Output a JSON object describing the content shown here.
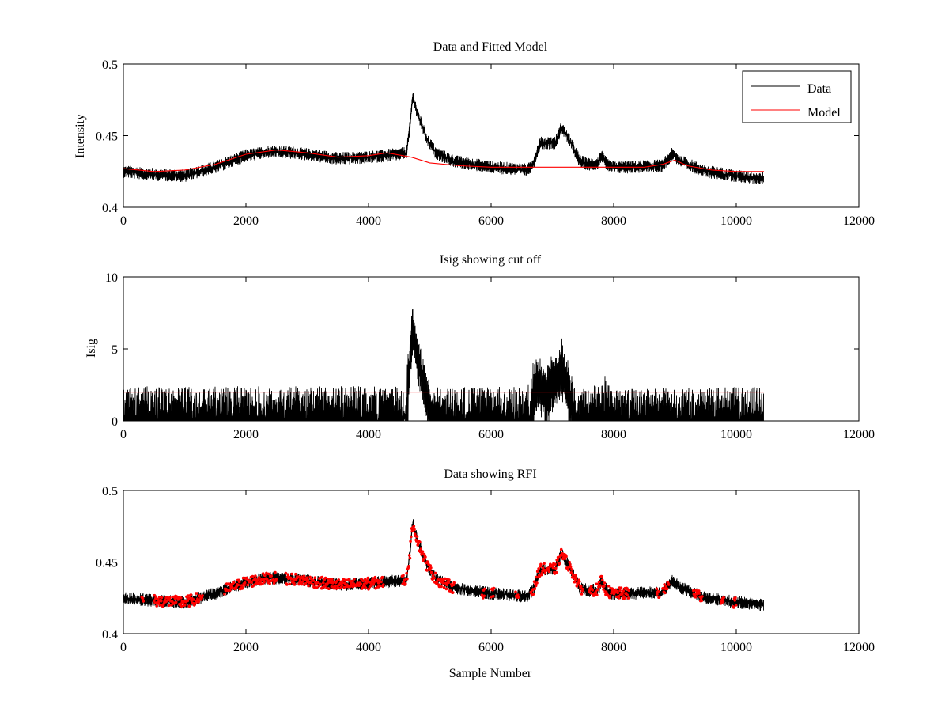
{
  "colors": {
    "data": "#000000",
    "model": "#ff0000",
    "background": "#ffffff"
  },
  "chart_data": [
    {
      "type": "line",
      "title": "Data and Fitted Model",
      "xlabel": "",
      "ylabel": "Intensity",
      "xlim": [
        0,
        12000
      ],
      "ylim": [
        0.4,
        0.5
      ],
      "xticks": [
        0,
        2000,
        4000,
        6000,
        8000,
        10000,
        12000
      ],
      "yticks": [
        0.4,
        0.45,
        0.5
      ],
      "xtick_labels": [
        "0",
        "2000",
        "4000",
        "6000",
        "8000",
        "10000",
        "12000"
      ],
      "ytick_labels": [
        "0.4",
        "0.45",
        "0.5"
      ],
      "grid": false,
      "legend": {
        "placement": "top-right",
        "entries": [
          "Data",
          "Model"
        ]
      },
      "series": [
        {
          "name": "Data",
          "color": "#000000",
          "style": "noisy-line",
          "noise": 0.0045,
          "x": [
            0,
            500,
            1000,
            1500,
            2000,
            2400,
            2800,
            3500,
            4000,
            4500,
            4620,
            4680,
            4720,
            4800,
            4950,
            5100,
            5400,
            6000,
            6600,
            6700,
            6800,
            6950,
            7050,
            7150,
            7300,
            7450,
            7600,
            7750,
            7800,
            7850,
            7950,
            8200,
            8800,
            8950,
            9100,
            9500,
            10000,
            10450
          ],
          "y": [
            0.425,
            0.423,
            0.422,
            0.428,
            0.436,
            0.439,
            0.438,
            0.434,
            0.435,
            0.437,
            0.438,
            0.458,
            0.478,
            0.465,
            0.448,
            0.438,
            0.432,
            0.428,
            0.426,
            0.432,
            0.445,
            0.445,
            0.445,
            0.456,
            0.445,
            0.432,
            0.43,
            0.431,
            0.437,
            0.432,
            0.428,
            0.428,
            0.429,
            0.437,
            0.432,
            0.425,
            0.422,
            0.42
          ]
        },
        {
          "name": "Model",
          "color": "#ff0000",
          "style": "line",
          "x": [
            0,
            500,
            1000,
            1500,
            2000,
            2500,
            3000,
            3500,
            4000,
            4300,
            4700,
            5000,
            5500,
            6000,
            7000,
            8000,
            8500,
            8800,
            9000,
            9200,
            9600,
            10000,
            10450
          ],
          "y": [
            0.427,
            0.425,
            0.426,
            0.43,
            0.437,
            0.44,
            0.438,
            0.435,
            0.436,
            0.438,
            0.435,
            0.431,
            0.429,
            0.428,
            0.428,
            0.428,
            0.428,
            0.43,
            0.433,
            0.429,
            0.426,
            0.425,
            0.425
          ]
        }
      ]
    },
    {
      "type": "line",
      "title": "Isig showing cut off",
      "xlabel": "",
      "ylabel": "Isig",
      "xlim": [
        0,
        12000
      ],
      "ylim": [
        0,
        10
      ],
      "xticks": [
        0,
        2000,
        4000,
        6000,
        8000,
        10000,
        12000
      ],
      "yticks": [
        0,
        5,
        10
      ],
      "xtick_labels": [
        "0",
        "2000",
        "4000",
        "6000",
        "8000",
        "10000",
        "12000"
      ],
      "ytick_labels": [
        "0",
        "5",
        "10"
      ],
      "grid": false,
      "series": [
        {
          "name": "Isig",
          "color": "#000000",
          "style": "noisy-bars",
          "noise": 2.0,
          "x": [
            0,
            4550,
            4600,
            4650,
            4720,
            4800,
            4900,
            5000,
            5100,
            6600,
            6750,
            6900,
            7000,
            7150,
            7250,
            7400,
            7550,
            7800,
            7850,
            7950,
            10450
          ],
          "y": [
            1.0,
            1.0,
            0.1,
            4.0,
            7.5,
            5.5,
            3.8,
            2.0,
            1.0,
            1.0,
            4.0,
            3.0,
            4.0,
            5.0,
            3.5,
            1.0,
            0.8,
            1.5,
            2.0,
            0.8,
            1.0
          ]
        },
        {
          "name": "Cut off",
          "color": "#ff0000",
          "style": "line",
          "x": [
            0,
            10450
          ],
          "y": [
            2,
            2
          ]
        }
      ]
    },
    {
      "type": "scatter",
      "title": "Data showing RFI",
      "xlabel": "Sample Number",
      "ylabel": "",
      "xlim": [
        0,
        12000
      ],
      "ylim": [
        0.4,
        0.5
      ],
      "xticks": [
        0,
        2000,
        4000,
        6000,
        8000,
        10000,
        12000
      ],
      "yticks": [
        0.4,
        0.45,
        0.5
      ],
      "xtick_labels": [
        "0",
        "2000",
        "4000",
        "6000",
        "8000",
        "10000",
        "12000"
      ],
      "ytick_labels": [
        "0.4",
        "0.45",
        "0.5"
      ],
      "grid": false,
      "series": [
        {
          "name": "Data",
          "color": "#000000",
          "style": "noisy-line",
          "noise": 0.0045,
          "x": [
            0,
            500,
            1000,
            1500,
            2000,
            2400,
            2800,
            3500,
            4000,
            4500,
            4620,
            4680,
            4720,
            4800,
            4950,
            5100,
            5400,
            6000,
            6600,
            6700,
            6800,
            6950,
            7050,
            7150,
            7300,
            7450,
            7600,
            7750,
            7800,
            7850,
            7950,
            8200,
            8800,
            8950,
            9100,
            9500,
            10000,
            10450
          ],
          "y": [
            0.425,
            0.423,
            0.422,
            0.428,
            0.436,
            0.439,
            0.438,
            0.434,
            0.435,
            0.437,
            0.438,
            0.458,
            0.478,
            0.465,
            0.448,
            0.438,
            0.432,
            0.428,
            0.426,
            0.432,
            0.445,
            0.445,
            0.445,
            0.456,
            0.445,
            0.432,
            0.43,
            0.431,
            0.437,
            0.432,
            0.428,
            0.428,
            0.429,
            0.437,
            0.432,
            0.425,
            0.422,
            0.42
          ]
        },
        {
          "name": "RFI",
          "color": "#ff0000",
          "style": "markers",
          "ranges": [
            [
              300,
              330
            ],
            [
              500,
              1300
            ],
            [
              1650,
              2500
            ],
            [
              2650,
              4250
            ],
            [
              4550,
              5400
            ],
            [
              5850,
              5900
            ],
            [
              6000,
              6050
            ],
            [
              6400,
              6450
            ],
            [
              6650,
              7500
            ],
            [
              7600,
              8250
            ],
            [
              8700,
              8750
            ],
            [
              8800,
              8900
            ],
            [
              9300,
              9450
            ],
            [
              9750,
              9800
            ],
            [
              9950,
              10000
            ]
          ]
        }
      ]
    }
  ]
}
